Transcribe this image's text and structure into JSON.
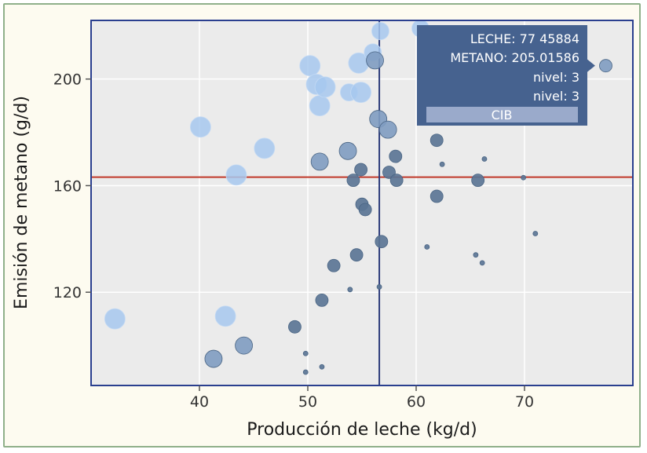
{
  "chart_data": {
    "type": "scatter",
    "title": "",
    "xlabel": "Producción de leche (kg/d)",
    "ylabel": "Emisión de metano (g/d)",
    "xlim": [
      30,
      80
    ],
    "ylim": [
      85,
      222
    ],
    "xticks": [
      40,
      50,
      60,
      70
    ],
    "yticks": [
      120,
      160,
      200
    ],
    "xtick_labels": [
      "40",
      "50",
      "60",
      "70"
    ],
    "ytick_labels": [
      "120",
      "160",
      "200"
    ],
    "grid": true,
    "reference_lines": {
      "vertical_x": 56.6,
      "horizontal_y": 163.2,
      "vertical_color": "#2b3a7a",
      "horizontal_color": "#c0392b"
    },
    "colors": {
      "plot_background": "#ebebeb",
      "frame_border": "#2a3f8f",
      "light_points": "#a7c8ee",
      "dark_points": "#5b7595",
      "tooltip_bg": "#46628f",
      "tooltip_band": "#9aaacb"
    },
    "points": [
      {
        "x": 32.2,
        "y": 110,
        "size": 5,
        "level": "light"
      },
      {
        "x": 40.1,
        "y": 182,
        "size": 5,
        "level": "light"
      },
      {
        "x": 41.3,
        "y": 95,
        "size": 4,
        "level": "mid"
      },
      {
        "x": 42.4,
        "y": 111,
        "size": 5,
        "level": "light"
      },
      {
        "x": 43.4,
        "y": 164,
        "size": 5,
        "level": "light"
      },
      {
        "x": 44.1,
        "y": 100,
        "size": 4,
        "level": "mid"
      },
      {
        "x": 46.0,
        "y": 174,
        "size": 5,
        "level": "light"
      },
      {
        "x": 48.8,
        "y": 107,
        "size": 3,
        "level": "dark"
      },
      {
        "x": 49.8,
        "y": 97,
        "size": 1,
        "level": "dark"
      },
      {
        "x": 49.8,
        "y": 90,
        "size": 1,
        "level": "dark"
      },
      {
        "x": 50.2,
        "y": 205,
        "size": 5,
        "level": "light"
      },
      {
        "x": 50.8,
        "y": 198,
        "size": 5,
        "level": "light"
      },
      {
        "x": 51.1,
        "y": 190,
        "size": 5,
        "level": "light"
      },
      {
        "x": 51.1,
        "y": 169,
        "size": 4,
        "level": "mid"
      },
      {
        "x": 51.3,
        "y": 117,
        "size": 3,
        "level": "dark"
      },
      {
        "x": 51.3,
        "y": 92,
        "size": 1,
        "level": "dark"
      },
      {
        "x": 51.6,
        "y": 197,
        "size": 5,
        "level": "light"
      },
      {
        "x": 52.4,
        "y": 130,
        "size": 3,
        "level": "dark"
      },
      {
        "x": 53.7,
        "y": 173,
        "size": 4,
        "level": "mid"
      },
      {
        "x": 53.8,
        "y": 195,
        "size": 4,
        "level": "light"
      },
      {
        "x": 53.9,
        "y": 121,
        "size": 1,
        "level": "dark"
      },
      {
        "x": 54.2,
        "y": 162,
        "size": 3,
        "level": "dark"
      },
      {
        "x": 54.5,
        "y": 134,
        "size": 3,
        "level": "dark"
      },
      {
        "x": 54.7,
        "y": 206,
        "size": 5,
        "level": "light"
      },
      {
        "x": 54.9,
        "y": 195,
        "size": 5,
        "level": "light"
      },
      {
        "x": 54.9,
        "y": 166,
        "size": 3,
        "level": "dark"
      },
      {
        "x": 55.0,
        "y": 153,
        "size": 3,
        "level": "dark"
      },
      {
        "x": 55.3,
        "y": 151,
        "size": 3,
        "level": "dark"
      },
      {
        "x": 56.0,
        "y": 210,
        "size": 4,
        "level": "light"
      },
      {
        "x": 56.2,
        "y": 207,
        "size": 4,
        "level": "mid"
      },
      {
        "x": 56.5,
        "y": 185,
        "size": 4,
        "level": "mid"
      },
      {
        "x": 56.6,
        "y": 122,
        "size": 1,
        "level": "dark"
      },
      {
        "x": 56.7,
        "y": 218,
        "size": 4,
        "level": "light"
      },
      {
        "x": 56.8,
        "y": 139,
        "size": 3,
        "level": "dark"
      },
      {
        "x": 57.4,
        "y": 181,
        "size": 4,
        "level": "mid"
      },
      {
        "x": 57.5,
        "y": 165,
        "size": 3,
        "level": "dark"
      },
      {
        "x": 58.1,
        "y": 171,
        "size": 3,
        "level": "dark"
      },
      {
        "x": 58.2,
        "y": 162,
        "size": 3,
        "level": "dark"
      },
      {
        "x": 60.4,
        "y": 219,
        "size": 4,
        "level": "light"
      },
      {
        "x": 61.0,
        "y": 137,
        "size": 1,
        "level": "dark"
      },
      {
        "x": 61.9,
        "y": 177,
        "size": 3,
        "level": "dark"
      },
      {
        "x": 61.9,
        "y": 156,
        "size": 3,
        "level": "dark"
      },
      {
        "x": 62.4,
        "y": 168,
        "size": 1,
        "level": "dark"
      },
      {
        "x": 65.5,
        "y": 134,
        "size": 1,
        "level": "dark"
      },
      {
        "x": 65.7,
        "y": 162,
        "size": 3,
        "level": "dark"
      },
      {
        "x": 66.1,
        "y": 131,
        "size": 1,
        "level": "dark"
      },
      {
        "x": 66.3,
        "y": 170,
        "size": 1,
        "level": "dark"
      },
      {
        "x": 69.9,
        "y": 163,
        "size": 1,
        "level": "dark"
      },
      {
        "x": 71.0,
        "y": 142,
        "size": 1,
        "level": "dark"
      },
      {
        "x": 77.5,
        "y": 205,
        "size": 3,
        "level": "mid"
      }
    ],
    "tooltip": {
      "lines": [
        "LECHE: 77 45884",
        "METANO: 205.01586",
        "nivel: 3",
        "nivel: 3"
      ],
      "band_label": "CIB",
      "target_x": 77.45884,
      "target_y": 205.01586
    }
  }
}
